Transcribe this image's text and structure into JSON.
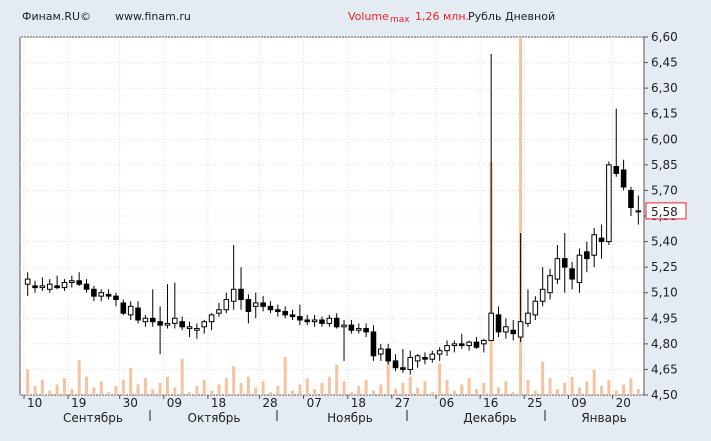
{
  "header": {
    "source": "Финам.RU©",
    "site": "www.finam.ru",
    "volume_label": "Volume",
    "max_label": "max",
    "volume_value": "1,26 млн.",
    "currency": "Рубль",
    "period": "Дневной"
  },
  "chart_data": {
    "type": "candlestick",
    "ylim": [
      4.5,
      6.6
    ],
    "y_ticks": [
      "6,60",
      "6,45",
      "6,30",
      "6,15",
      "6,00",
      "5,85",
      "5,70",
      "5,55",
      "5,40",
      "5,25",
      "5,10",
      "4,95",
      "4,80",
      "4,65",
      "4,50"
    ],
    "last_value": "5,58",
    "x_day_ticks": [
      "10",
      "19",
      "30",
      "09",
      "18",
      "28",
      "07",
      "18",
      "27",
      "06",
      "16",
      "25",
      "09",
      "20"
    ],
    "x_month_labels": [
      "Сентябрь",
      "Октябрь",
      "Ноябрь",
      "Декабрь",
      "Январь"
    ],
    "colors": {
      "up": "#ffffff",
      "down": "#000000",
      "volume": "#f5c49e",
      "last_value_box": "#e8232a"
    },
    "candles": [
      {
        "o": 5.15,
        "h": 5.22,
        "l": 5.08,
        "c": 5.18
      },
      {
        "o": 5.14,
        "h": 5.17,
        "l": 5.1,
        "c": 5.13
      },
      {
        "o": 5.13,
        "h": 5.19,
        "l": 5.11,
        "c": 5.14
      },
      {
        "o": 5.12,
        "h": 5.18,
        "l": 5.1,
        "c": 5.15
      },
      {
        "o": 5.14,
        "h": 5.2,
        "l": 5.12,
        "c": 5.13
      },
      {
        "o": 5.13,
        "h": 5.18,
        "l": 5.11,
        "c": 5.16
      },
      {
        "o": 5.16,
        "h": 5.2,
        "l": 5.13,
        "c": 5.17
      },
      {
        "o": 5.17,
        "h": 5.22,
        "l": 5.14,
        "c": 5.15
      },
      {
        "o": 5.15,
        "h": 5.18,
        "l": 5.1,
        "c": 5.12
      },
      {
        "o": 5.12,
        "h": 5.14,
        "l": 5.05,
        "c": 5.08
      },
      {
        "o": 5.08,
        "h": 5.12,
        "l": 5.05,
        "c": 5.1
      },
      {
        "o": 5.09,
        "h": 5.12,
        "l": 5.06,
        "c": 5.08
      },
      {
        "o": 5.08,
        "h": 5.1,
        "l": 5.02,
        "c": 5.06
      },
      {
        "o": 5.04,
        "h": 5.06,
        "l": 4.97,
        "c": 4.98
      },
      {
        "o": 4.97,
        "h": 5.05,
        "l": 4.94,
        "c": 5.02
      },
      {
        "o": 5.01,
        "h": 5.05,
        "l": 4.92,
        "c": 4.94
      },
      {
        "o": 4.93,
        "h": 4.97,
        "l": 4.9,
        "c": 4.95
      },
      {
        "o": 4.95,
        "h": 5.12,
        "l": 4.9,
        "c": 4.93
      },
      {
        "o": 4.93,
        "h": 5.02,
        "l": 4.74,
        "c": 4.91
      },
      {
        "o": 4.91,
        "h": 5.15,
        "l": 4.89,
        "c": 4.92
      },
      {
        "o": 4.92,
        "h": 5.16,
        "l": 4.89,
        "c": 4.95
      },
      {
        "o": 4.93,
        "h": 4.96,
        "l": 4.88,
        "c": 4.9
      },
      {
        "o": 4.89,
        "h": 4.93,
        "l": 4.84,
        "c": 4.9
      },
      {
        "o": 4.88,
        "h": 4.92,
        "l": 4.83,
        "c": 4.89
      },
      {
        "o": 4.9,
        "h": 4.94,
        "l": 4.86,
        "c": 4.93
      },
      {
        "o": 4.93,
        "h": 4.98,
        "l": 4.88,
        "c": 4.97
      },
      {
        "o": 4.98,
        "h": 5.04,
        "l": 4.96,
        "c": 5.0
      },
      {
        "o": 5.0,
        "h": 5.1,
        "l": 4.98,
        "c": 5.06
      },
      {
        "o": 5.05,
        "h": 5.38,
        "l": 5.0,
        "c": 5.12
      },
      {
        "o": 5.12,
        "h": 5.25,
        "l": 5.0,
        "c": 5.06
      },
      {
        "o": 5.06,
        "h": 5.09,
        "l": 4.92,
        "c": 4.99
      },
      {
        "o": 5.02,
        "h": 5.1,
        "l": 4.95,
        "c": 5.04
      },
      {
        "o": 5.04,
        "h": 5.08,
        "l": 4.99,
        "c": 5.02
      },
      {
        "o": 5.02,
        "h": 5.05,
        "l": 4.98,
        "c": 5.0
      },
      {
        "o": 5.0,
        "h": 5.03,
        "l": 4.96,
        "c": 4.99
      },
      {
        "o": 4.99,
        "h": 5.02,
        "l": 4.95,
        "c": 4.97
      },
      {
        "o": 4.97,
        "h": 5.0,
        "l": 4.94,
        "c": 4.96
      },
      {
        "o": 4.96,
        "h": 5.03,
        "l": 4.91,
        "c": 4.94
      },
      {
        "o": 4.94,
        "h": 4.97,
        "l": 4.91,
        "c": 4.93
      },
      {
        "o": 4.93,
        "h": 4.97,
        "l": 4.9,
        "c": 4.94
      },
      {
        "o": 4.94,
        "h": 4.96,
        "l": 4.9,
        "c": 4.92
      },
      {
        "o": 4.92,
        "h": 4.97,
        "l": 4.9,
        "c": 4.95
      },
      {
        "o": 4.95,
        "h": 4.98,
        "l": 4.89,
        "c": 4.9
      },
      {
        "o": 4.9,
        "h": 4.94,
        "l": 4.7,
        "c": 4.91
      },
      {
        "o": 4.91,
        "h": 4.94,
        "l": 4.86,
        "c": 4.88
      },
      {
        "o": 4.88,
        "h": 4.92,
        "l": 4.86,
        "c": 4.89
      },
      {
        "o": 4.89,
        "h": 4.92,
        "l": 4.84,
        "c": 4.87
      },
      {
        "o": 4.87,
        "h": 4.91,
        "l": 4.7,
        "c": 4.73
      },
      {
        "o": 4.74,
        "h": 4.8,
        "l": 4.7,
        "c": 4.77
      },
      {
        "o": 4.77,
        "h": 4.8,
        "l": 4.68,
        "c": 4.7
      },
      {
        "o": 4.7,
        "h": 4.74,
        "l": 4.64,
        "c": 4.66
      },
      {
        "o": 4.66,
        "h": 4.77,
        "l": 4.63,
        "c": 4.65
      },
      {
        "o": 4.65,
        "h": 4.76,
        "l": 4.62,
        "c": 4.72
      },
      {
        "o": 4.7,
        "h": 4.74,
        "l": 4.66,
        "c": 4.73
      },
      {
        "o": 4.72,
        "h": 4.75,
        "l": 4.68,
        "c": 4.71
      },
      {
        "o": 4.71,
        "h": 4.76,
        "l": 4.69,
        "c": 4.74
      },
      {
        "o": 4.74,
        "h": 4.78,
        "l": 4.7,
        "c": 4.76
      },
      {
        "o": 4.76,
        "h": 4.82,
        "l": 4.73,
        "c": 4.79
      },
      {
        "o": 4.79,
        "h": 4.82,
        "l": 4.75,
        "c": 4.8
      },
      {
        "o": 4.8,
        "h": 4.86,
        "l": 4.77,
        "c": 4.79
      },
      {
        "o": 4.79,
        "h": 4.82,
        "l": 4.76,
        "c": 4.81
      },
      {
        "o": 4.81,
        "h": 4.84,
        "l": 4.77,
        "c": 4.78
      },
      {
        "o": 4.8,
        "h": 4.83,
        "l": 4.75,
        "c": 4.82
      },
      {
        "o": 4.82,
        "h": 6.5,
        "l": 4.83,
        "c": 4.98
      },
      {
        "o": 4.97,
        "h": 5.02,
        "l": 4.84,
        "c": 4.87
      },
      {
        "o": 4.87,
        "h": 4.95,
        "l": 4.83,
        "c": 4.9
      },
      {
        "o": 4.88,
        "h": 4.94,
        "l": 4.82,
        "c": 4.86
      },
      {
        "o": 4.84,
        "h": 5.45,
        "l": 4.81,
        "c": 4.93
      },
      {
        "o": 4.92,
        "h": 5.12,
        "l": 4.9,
        "c": 4.98
      },
      {
        "o": 4.97,
        "h": 5.08,
        "l": 4.94,
        "c": 5.05
      },
      {
        "o": 5.05,
        "h": 5.25,
        "l": 5.02,
        "c": 5.12
      },
      {
        "o": 5.1,
        "h": 5.24,
        "l": 5.06,
        "c": 5.2
      },
      {
        "o": 5.18,
        "h": 5.38,
        "l": 5.15,
        "c": 5.3
      },
      {
        "o": 5.3,
        "h": 5.45,
        "l": 5.1,
        "c": 5.25
      },
      {
        "o": 5.24,
        "h": 5.28,
        "l": 5.12,
        "c": 5.18
      },
      {
        "o": 5.16,
        "h": 5.36,
        "l": 5.1,
        "c": 5.32
      },
      {
        "o": 5.34,
        "h": 5.4,
        "l": 5.22,
        "c": 5.3
      },
      {
        "o": 5.32,
        "h": 5.48,
        "l": 5.25,
        "c": 5.44
      },
      {
        "o": 5.42,
        "h": 5.5,
        "l": 5.3,
        "c": 5.4
      },
      {
        "o": 5.4,
        "h": 5.87,
        "l": 5.38,
        "c": 5.85
      },
      {
        "o": 5.84,
        "h": 6.18,
        "l": 5.78,
        "c": 5.8
      },
      {
        "o": 5.82,
        "h": 5.88,
        "l": 5.7,
        "c": 5.72
      },
      {
        "o": 5.7,
        "h": 5.72,
        "l": 5.55,
        "c": 5.6
      },
      {
        "o": 5.58,
        "h": 5.67,
        "l": 5.5,
        "c": 5.58
      }
    ],
    "volume_spikes": [
      {
        "index": 63,
        "value": 0.82
      },
      {
        "index": 67,
        "value": 1.26
      }
    ]
  }
}
